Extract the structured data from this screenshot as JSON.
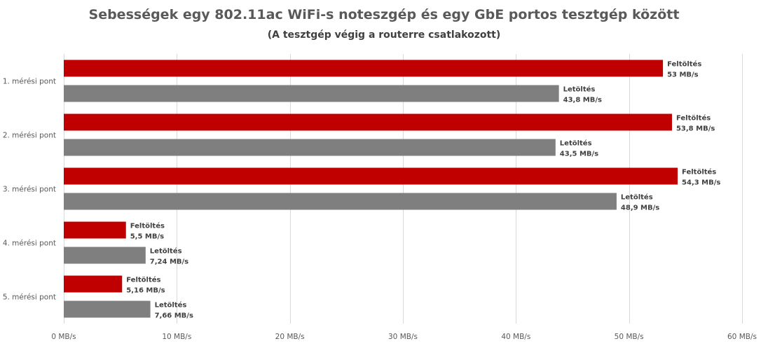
{
  "chart_data": {
    "type": "bar",
    "orientation": "horizontal",
    "title": "Sebességek egy 802.11ac WiFi-s noteszgép és egy GbE portos tesztgép között",
    "subtitle": "(A tesztgép végig a routerre csatlakozott)",
    "categories": [
      "1. mérési pont",
      "2. mérési pont",
      "3. mérési pont",
      "4. mérési pont",
      "5. mérési pont"
    ],
    "series": [
      {
        "name": "Feltöltés",
        "color": "#c00000",
        "values": [
          53,
          53.8,
          54.3,
          5.5,
          5.16
        ],
        "labels": [
          "53 MB/s",
          "53,8 MB/s",
          "54,3 MB/s",
          "5,5 MB/s",
          "5,16 MB/s"
        ]
      },
      {
        "name": "Letöltés",
        "color": "#7f7f7f",
        "values": [
          43.8,
          43.5,
          48.9,
          7.24,
          7.66
        ],
        "labels": [
          "43,8 MB/s",
          "43,5 MB/s",
          "48,9 MB/s",
          "7,24 MB/s",
          "7,66 MB/s"
        ]
      }
    ],
    "xlim": [
      0,
      60
    ],
    "x_ticks": [
      0,
      10,
      20,
      30,
      40,
      50,
      60
    ],
    "x_tick_labels": [
      "0 MB/s",
      "10 MB/s",
      "20 MB/s",
      "30 MB/s",
      "40 MB/s",
      "50 MB/s",
      "60 MB/s"
    ],
    "grid": "vertical",
    "gridline_color": "#d9d9d9",
    "legend": "none"
  }
}
